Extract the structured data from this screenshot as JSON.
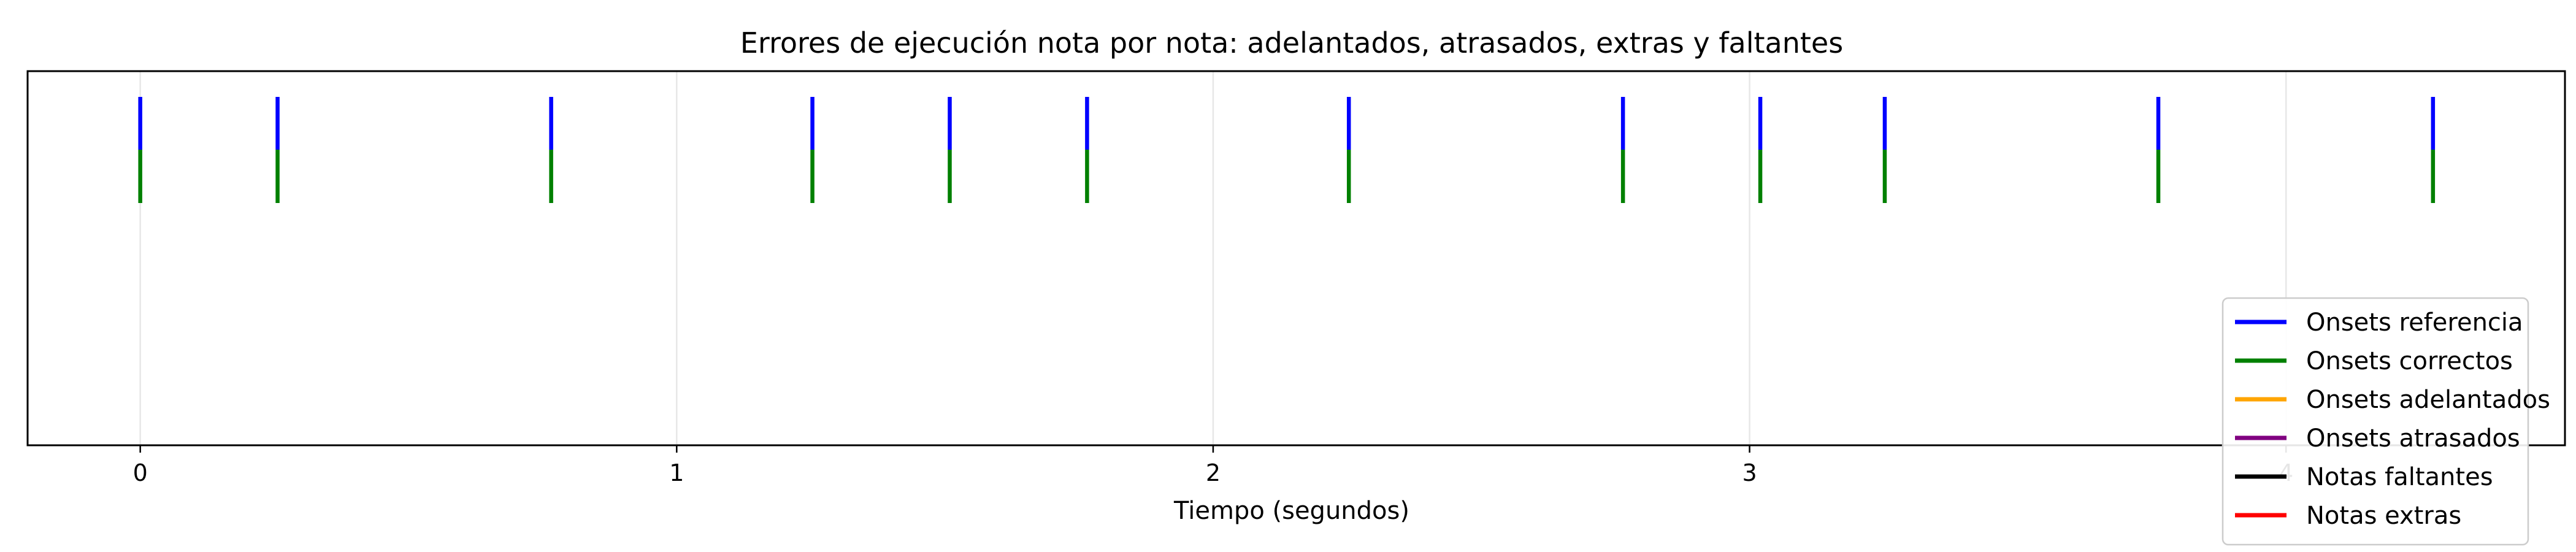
{
  "chart_data": {
    "type": "event-plot",
    "title": "Errores de ejecución nota por nota: adelantados, atrasados, extras y faltantes",
    "xlabel": "Tiempo (segundos)",
    "ylabel": "",
    "xlim": [
      -0.21,
      4.52
    ],
    "x_ticks": [
      0,
      1,
      2,
      3,
      4
    ],
    "x_tick_labels": [
      "0",
      "1",
      "2",
      "3",
      "4"
    ],
    "grid": "vertical",
    "legend_position": "lower-right",
    "series": [
      {
        "name": "Onsets referencia",
        "color": "#0000ff",
        "values": [
          0,
          0.256,
          0.766,
          1.253,
          1.509,
          1.765,
          2.253,
          2.764,
          3.02,
          3.252,
          3.762,
          4.274
        ]
      },
      {
        "name": "Onsets correctos",
        "color": "#008000",
        "values": [
          0,
          0.256,
          0.766,
          1.253,
          1.509,
          1.765,
          2.253,
          2.764,
          3.02,
          3.252,
          3.762,
          4.274
        ]
      },
      {
        "name": "Onsets adelantados",
        "color": "#ffa500",
        "values": []
      },
      {
        "name": "Onsets atrasados",
        "color": "#800080",
        "values": []
      },
      {
        "name": "Notas faltantes",
        "color": "#000000",
        "values": []
      },
      {
        "name": "Notas extras",
        "color": "#ff0000",
        "values": []
      }
    ]
  }
}
